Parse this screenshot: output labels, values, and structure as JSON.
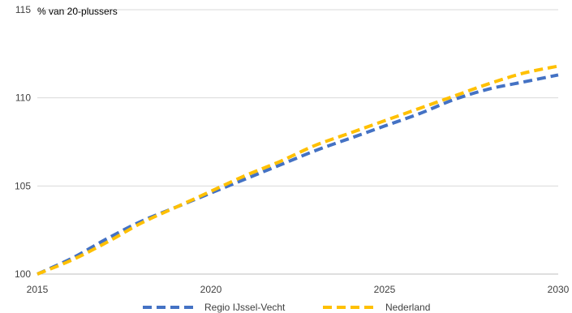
{
  "chart_data": {
    "type": "line",
    "title": "",
    "subtitle": "% van 20-plussers",
    "xlabel": "",
    "ylabel": "",
    "xlim": [
      2015,
      2030
    ],
    "ylim": [
      100,
      115
    ],
    "x_ticks": [
      "2015",
      "2020",
      "2025",
      "2030"
    ],
    "y_ticks": [
      "100",
      "105",
      "110",
      "115"
    ],
    "grid": "horizontal",
    "legend_position": "bottom",
    "x": [
      2015,
      2016,
      2017,
      2018,
      2019,
      2020,
      2021,
      2022,
      2023,
      2024,
      2025,
      2026,
      2027,
      2028,
      2029,
      2030
    ],
    "series": [
      {
        "name": "Regio IJssel-Vecht",
        "color": "#4472C4",
        "values": [
          100.0,
          100.9,
          102.0,
          103.0,
          103.8,
          104.6,
          105.4,
          106.2,
          107.0,
          107.7,
          108.4,
          109.1,
          109.9,
          110.5,
          110.9,
          111.3
        ]
      },
      {
        "name": "Nederland",
        "color": "#FFC000",
        "values": [
          100.0,
          100.8,
          101.8,
          102.9,
          103.8,
          104.7,
          105.6,
          106.4,
          107.3,
          108.0,
          108.7,
          109.4,
          110.1,
          110.8,
          111.4,
          111.8
        ]
      }
    ]
  }
}
